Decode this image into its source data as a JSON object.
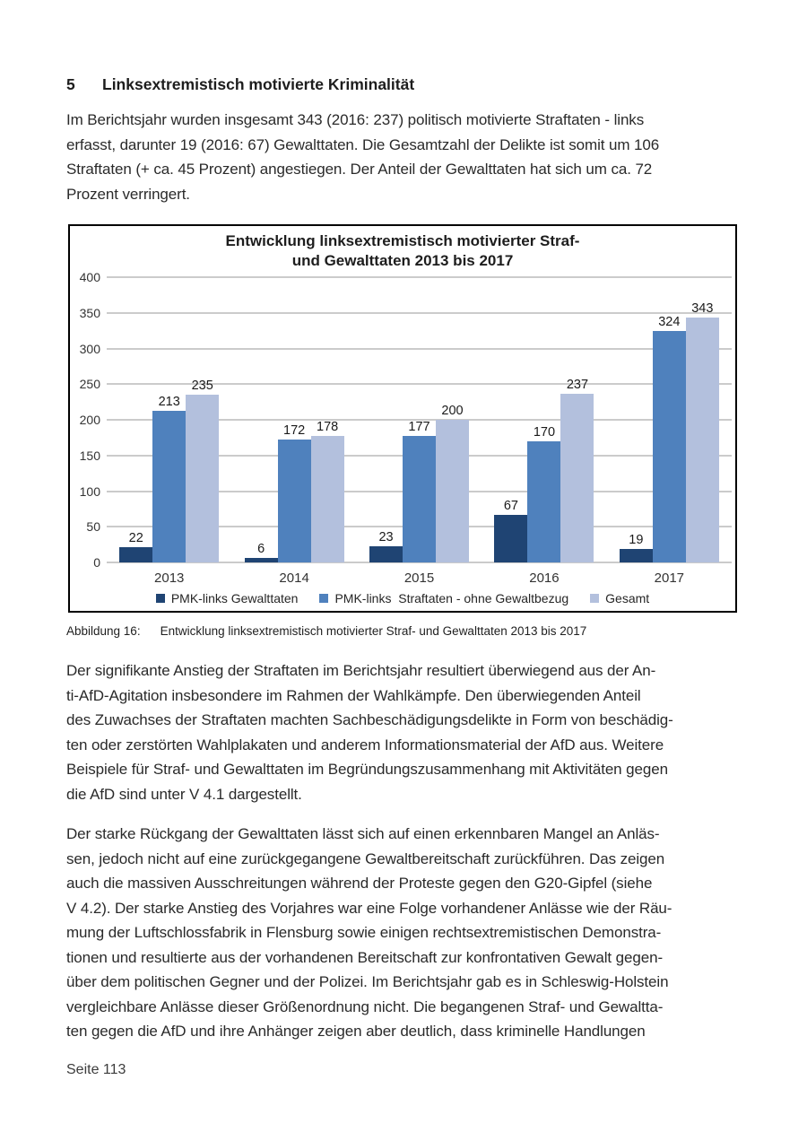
{
  "page": {
    "heading": {
      "number": "5",
      "title": "Linksextremistisch motivierte Kriminalität"
    },
    "paragraphs": {
      "p1": "Im Berichtsjahr wurden insgesamt 343 (2016: 237) politisch motivierte Straftaten - links\nerfasst, darunter 19 (2016: 67) Gewalttaten. Die Gesamtzahl der Delikte ist somit um 106\nStraftaten (+ ca. 45 Prozent) angestiegen. Der Anteil der Gewalttaten hat sich um ca. 72\nProzent verringert.",
      "p2": "Der signifikante Anstieg der Straftaten im Berichtsjahr resultiert überwiegend aus der An-\nti-AfD-Agitation insbesondere im Rahmen der Wahlkämpfe. Den überwiegenden Anteil\ndes Zuwachses der Straftaten machten Sachbeschädigungsdelikte in Form von beschädig-\nten oder zerstörten Wahlplakaten und anderem Informationsmaterial der AfD aus. Weitere\nBeispiele für Straf- und Gewalttaten im Begründungszusammenhang mit Aktivitäten gegen\ndie AfD sind unter V 4.1 dargestellt.",
      "p3": "Der starke Rückgang der Gewalttaten lässt sich auf einen erkennbaren Mangel an Anläs-\nsen, jedoch nicht auf eine zurückgegangene Gewaltbereitschaft zurückführen. Das zeigen\nauch die massiven Ausschreitungen während der Proteste gegen den G20-Gipfel (siehe\nV 4.2). Der starke Anstieg des Vorjahres war eine Folge vorhandener Anlässe wie der Räu-\nmung der Luftschlossfabrik in Flensburg sowie einigen rechtsextremistischen Demonstra-\ntionen und resultierte aus der vorhandenen Bereitschaft zur konfrontativen Gewalt gegen-\nüber dem politischen Gegner und der Polizei. Im Berichtsjahr gab es in Schleswig-Holstein\nvergleichbare Anlässe dieser Größenordnung nicht. Die begangenen Straf- und Gewaltta-\nten gegen die AfD und ihre Anhänger zeigen aber deutlich, dass kriminelle Handlungen"
    },
    "figure_caption": {
      "label": "Abbildung 16:",
      "text": "Entwicklung linksextremistisch motivierter Straf- und Gewalttaten 2013 bis 2017"
    },
    "footer": "Seite 113"
  },
  "chart_data": {
    "type": "bar",
    "title": "Entwicklung linksextremistisch motivierter Straf-\nund Gewalttaten 2013 bis 2017",
    "categories": [
      "2013",
      "2014",
      "2015",
      "2016",
      "2017"
    ],
    "series": [
      {
        "name": "PMK-links Gewalttaten",
        "color": "#1f4473",
        "values": [
          22,
          6,
          23,
          67,
          19
        ]
      },
      {
        "name": "PMK-links  Straftaten - ohne Gewaltbezug",
        "color": "#4f81bd",
        "values": [
          213,
          172,
          177,
          170,
          324
        ]
      },
      {
        "name": "Gesamt",
        "color": "#b3c0dd",
        "values": [
          235,
          178,
          200,
          237,
          343
        ]
      }
    ],
    "ylim": [
      0,
      400
    ],
    "ytick_step": 50,
    "grid": true,
    "legend_position": "bottom",
    "data_labels": true,
    "colors": {
      "gridline": "#cbcbcb",
      "border": "#000000"
    }
  }
}
